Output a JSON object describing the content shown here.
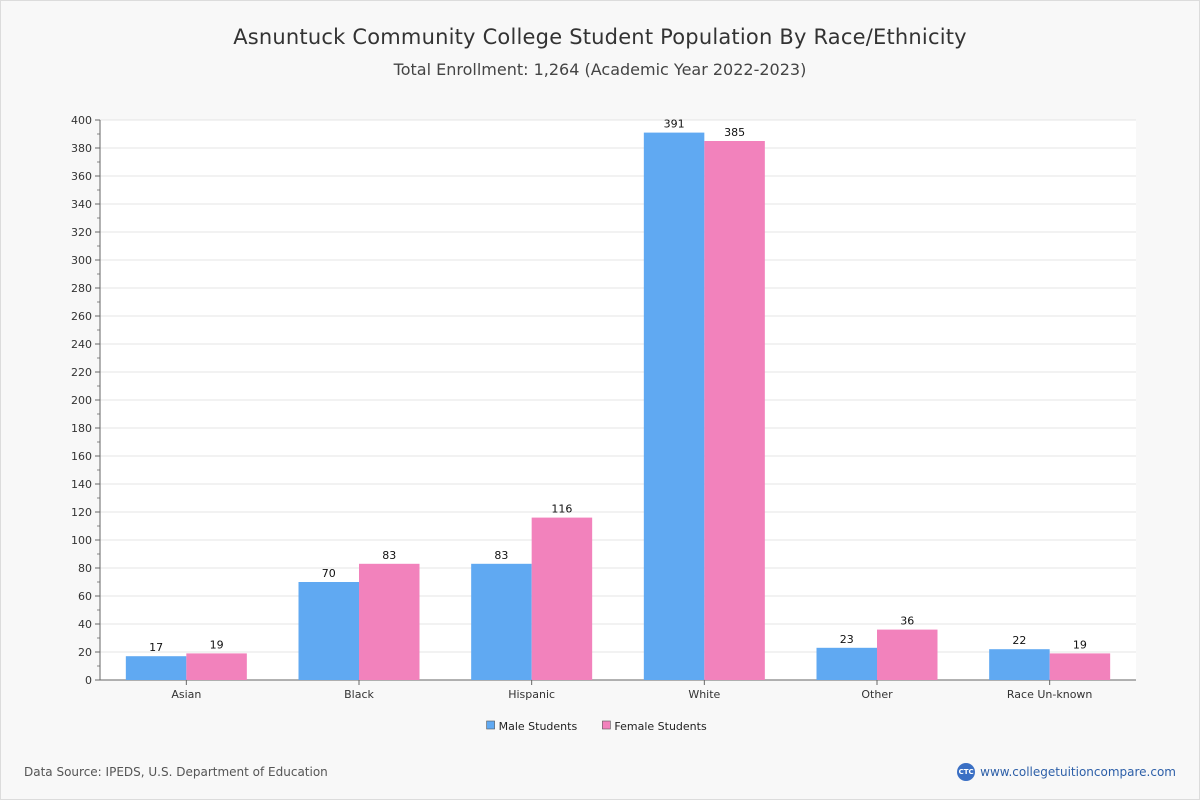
{
  "chart_data": {
    "type": "bar",
    "title": "Asnuntuck Community College Student Population By Race/Ethnicity",
    "subtitle": "Total Enrollment: 1,264 (Academic Year 2022-2023)",
    "categories": [
      "Asian",
      "Black",
      "Hispanic",
      "White",
      "Other",
      "Race Un-known"
    ],
    "series": [
      {
        "name": "Male Students",
        "color": "#60a9f2",
        "values": [
          17,
          70,
          83,
          391,
          23,
          22
        ]
      },
      {
        "name": "Female Students",
        "color": "#f282bc",
        "values": [
          19,
          83,
          116,
          385,
          36,
          19
        ]
      }
    ],
    "ylim": [
      0,
      400
    ],
    "ytick_step": 20,
    "grid": true,
    "legend_position": "bottom-center"
  },
  "footer": {
    "source": "Data Source: IPEDS, U.S. Department of Education",
    "logo_text": "CTC",
    "site": "www.collegetuitioncompare.com"
  }
}
